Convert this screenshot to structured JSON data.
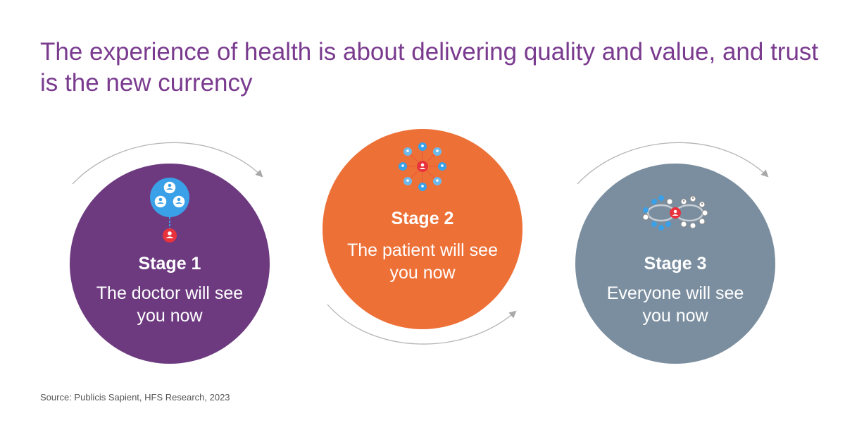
{
  "title": "The experience of health is about delivering quality and value, and trust is the new currency",
  "stages": [
    {
      "title": "Stage 1",
      "text": "The doctor will see you now",
      "color": "#6d3a80"
    },
    {
      "title": "Stage 2",
      "text": "The patient will see you now",
      "color": "#ed7037"
    },
    {
      "title": "Stage 3",
      "text": "Everyone will see you now",
      "color": "#7b8e9f"
    }
  ],
  "source": "Source: Publicis Sapient, HFS Research, 2023",
  "colors": {
    "title": "#7a3b8f",
    "node_blue": "#3aa0e8",
    "node_light_blue": "#6fb8ea",
    "node_red": "#e8323c",
    "node_grey": "#8a8a8a",
    "arrow": "#a9a9a9"
  },
  "icons": {
    "stage1": "doctor-centric-network-icon",
    "stage2": "patient-centric-network-icon",
    "stage3": "ecosystem-network-icon",
    "arrows": "curved-arrow-icon"
  }
}
